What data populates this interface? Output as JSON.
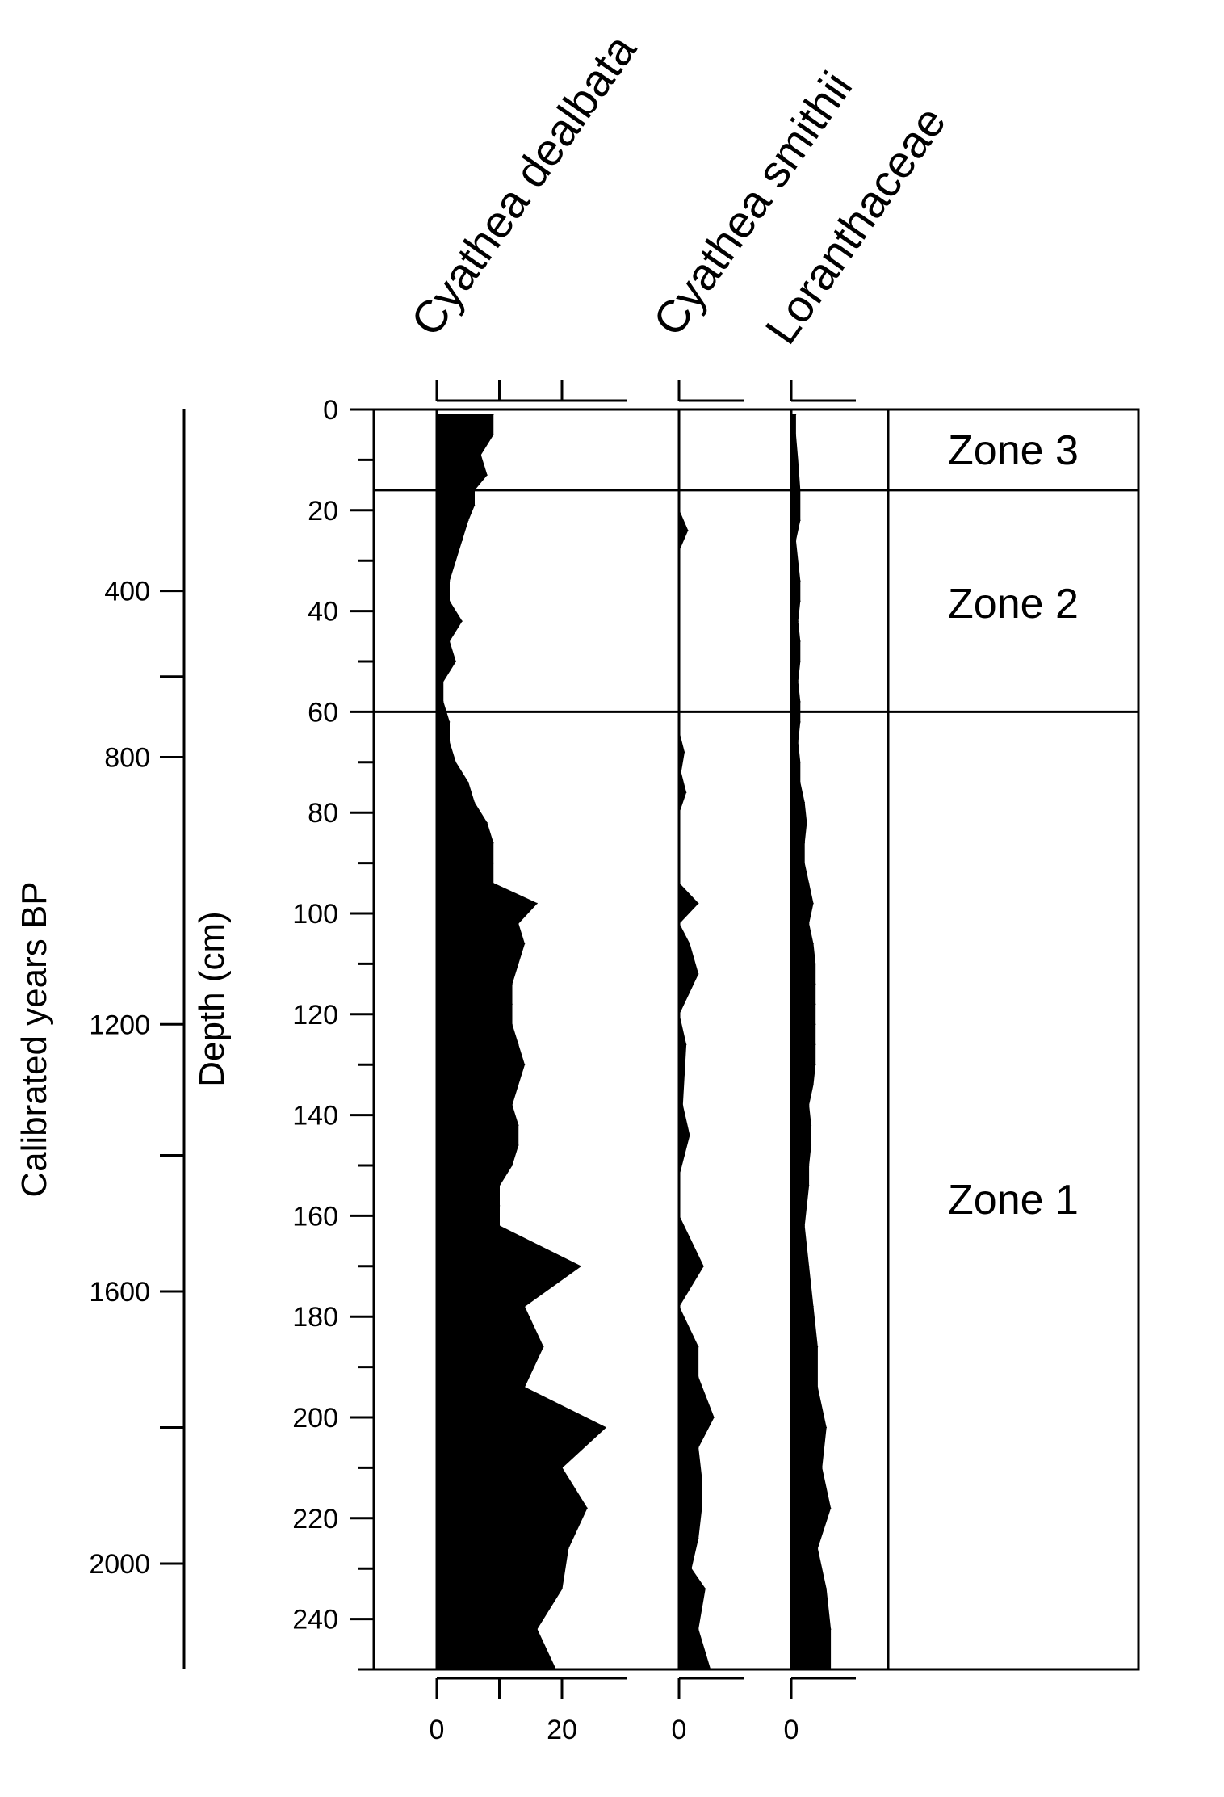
{
  "chart_data": {
    "type": "area",
    "x_axis_label": "",
    "depth_axis": {
      "label": "Depth (cm)",
      "range": [
        0,
        250
      ],
      "ticks": [
        0,
        20,
        40,
        60,
        80,
        100,
        120,
        140,
        160,
        180,
        200,
        220,
        240
      ],
      "tick_labels": [
        "0",
        "20",
        "40",
        "60",
        "80",
        "100",
        "120",
        "140",
        "160",
        "180",
        "200",
        "220",
        "240"
      ]
    },
    "age_axis": {
      "label": "Calibrated years BP",
      "tick_labels": [
        "400",
        "800",
        "1200",
        "1600",
        "2000"
      ],
      "tick_depths_cm": [
        36,
        69,
        122,
        175,
        229
      ],
      "extra_tick_depths_cm": [
        53,
        148,
        202
      ]
    },
    "series": [
      {
        "name": "Cyathea dealbata",
        "scale_max": 30,
        "bottom_tick_labels": [
          "0",
          "20"
        ],
        "bottom_tick_values": [
          0,
          20
        ],
        "depth_cm": [
          1,
          5,
          9,
          13,
          16,
          19,
          22,
          26,
          30,
          34,
          38,
          42,
          46,
          50,
          54,
          58,
          62,
          66,
          70,
          74,
          78,
          82,
          86,
          90,
          94,
          98,
          102,
          106,
          110,
          114,
          118,
          122,
          126,
          130,
          134,
          138,
          142,
          146,
          150,
          154,
          158,
          162,
          170,
          178,
          186,
          194,
          202,
          210,
          218,
          226,
          234,
          242,
          250
        ],
        "values": [
          9,
          9,
          7,
          8,
          6,
          6,
          5,
          4,
          3,
          2,
          2,
          4,
          2,
          3,
          1,
          1,
          2,
          2,
          3,
          5,
          6,
          8,
          9,
          9,
          9,
          16,
          13,
          14,
          13,
          12,
          12,
          12,
          13,
          14,
          13,
          12,
          13,
          13,
          12,
          10,
          10,
          10,
          23,
          14,
          17,
          14,
          27,
          20,
          24,
          21,
          20,
          16,
          19
        ]
      },
      {
        "name": "Cyathea smithii",
        "scale_max": 10,
        "bottom_tick_labels": [
          "0"
        ],
        "bottom_tick_values": [
          0
        ],
        "depth_cm": [
          20,
          24,
          28,
          64,
          68,
          72,
          76,
          80,
          94,
          98,
          102,
          106,
          112,
          120,
          126,
          132,
          138,
          144,
          148,
          152,
          160,
          170,
          178,
          186,
          192,
          200,
          206,
          212,
          218,
          224,
          230,
          234,
          238,
          242,
          250
        ],
        "values": [
          0,
          2.5,
          0,
          0,
          1.5,
          0.5,
          2,
          0,
          0,
          5.5,
          0,
          3,
          5.5,
          0,
          2,
          1.5,
          1,
          3,
          1.5,
          0,
          0,
          7,
          0,
          5.5,
          5.5,
          10,
          5.5,
          6.5,
          6.5,
          5.5,
          3.5,
          7.5,
          6.5,
          5.5,
          9
        ]
      },
      {
        "name": "Loranthaceae",
        "scale_max": 10,
        "bottom_tick_labels": [
          "0"
        ],
        "bottom_tick_values": [
          0
        ],
        "depth_cm": [
          1,
          5,
          10,
          16,
          22,
          26,
          30,
          34,
          38,
          42,
          46,
          50,
          54,
          58,
          62,
          66,
          70,
          74,
          78,
          82,
          86,
          90,
          94,
          98,
          102,
          106,
          110,
          114,
          118,
          122,
          126,
          130,
          134,
          138,
          142,
          146,
          150,
          154,
          158,
          162,
          170,
          178,
          186,
          194,
          202,
          210,
          218,
          226,
          234,
          242,
          250
        ],
        "values": [
          1,
          1,
          1.5,
          2,
          2,
          1,
          1.5,
          2,
          2,
          1.5,
          2,
          2,
          1.5,
          2,
          2,
          1.5,
          2,
          2,
          3,
          3.5,
          3,
          3,
          4,
          5,
          4,
          5,
          5.5,
          5.5,
          5.5,
          5.5,
          5.5,
          5.5,
          5,
          4,
          4.5,
          4.5,
          4,
          4,
          3.5,
          3,
          4,
          5,
          6,
          6,
          8,
          7,
          9,
          6,
          8,
          9,
          9
        ]
      }
    ],
    "zones": [
      {
        "label": "Zone 3",
        "top_cm": 0,
        "bottom_cm": 16
      },
      {
        "label": "Zone 2",
        "top_cm": 16,
        "bottom_cm": 60
      },
      {
        "label": "Zone 1",
        "top_cm": 60,
        "bottom_cm": 250
      }
    ],
    "zone_boundaries_cm": [
      16,
      60
    ]
  }
}
